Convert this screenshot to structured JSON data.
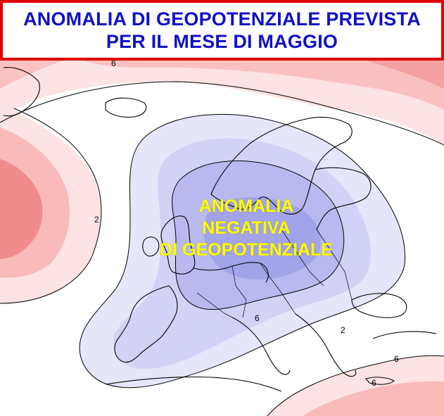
{
  "header": {
    "title_line_1": "ANOMALIA DI GEOPOTENZIALE PREVISTA",
    "title_line_2": "PER IL MESE DI MAGGIO"
  },
  "annotation": {
    "line_1": "ANOMALIA",
    "line_2": "NEGATIVA",
    "line_3": "DI GEOPOTENZIALE"
  },
  "contour_labels": {
    "north": "6",
    "west": "2",
    "central": "6",
    "southeast": "2",
    "east": "6",
    "crete": "6"
  },
  "colors": {
    "title_border": "#e00000",
    "title_text": "#1010c8",
    "annotation_text": "#ffff00",
    "positive_light": "#fde3e3",
    "positive_mid": "#f9baba",
    "positive_strong": "#f08c8c",
    "negative_light": "#e6e6fb",
    "negative_mid": "#d2d2f6",
    "negative_strong": "#b9b9f0",
    "negative_core": "#a3a3ea",
    "coastline": "#000000"
  }
}
